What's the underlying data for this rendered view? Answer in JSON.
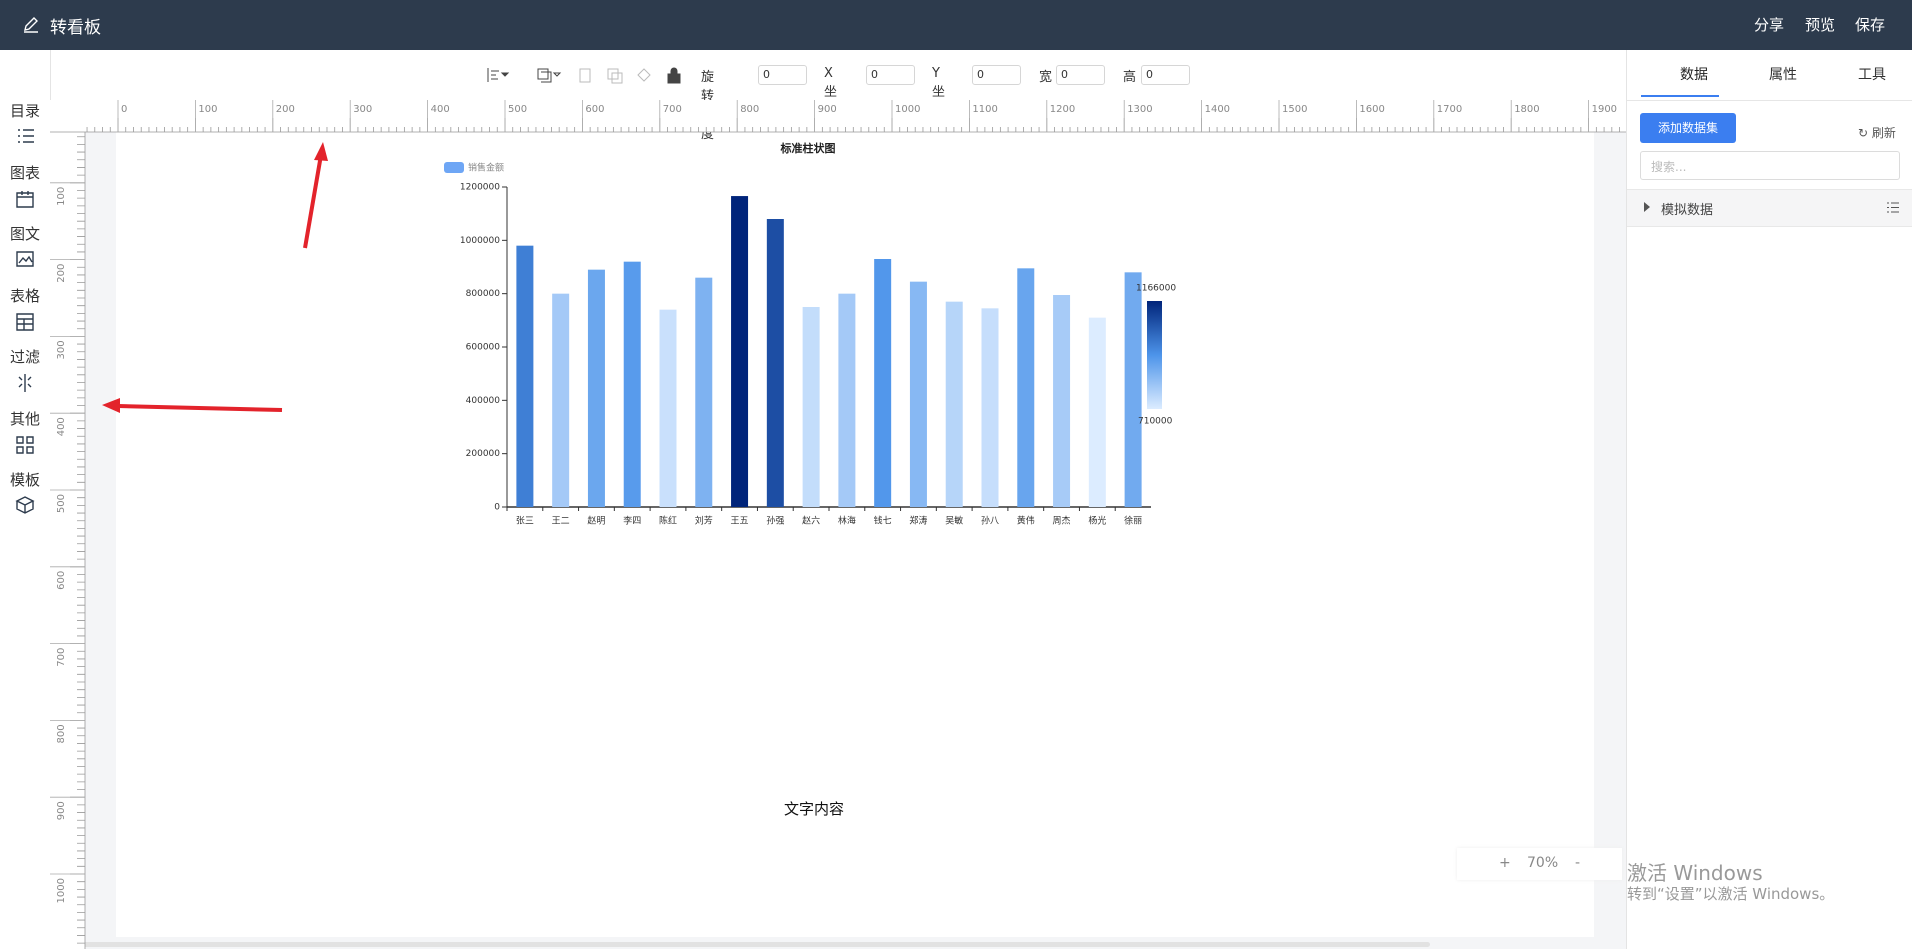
{
  "header": {
    "title": "转看板",
    "actions": [
      "分享",
      "预览",
      "保存"
    ]
  },
  "sidebar": [
    "目录",
    "图表",
    "图文",
    "表格",
    "过滤",
    "其他",
    "模板"
  ],
  "toolbar": [
    {
      "label": "旋转角度",
      "value": 0
    },
    {
      "label": "X坐标",
      "value": 0
    },
    {
      "label": "Y坐标",
      "value": 0
    },
    {
      "label": "宽",
      "value": 0
    },
    {
      "label": "高",
      "value": 0
    }
  ],
  "ruler": {
    "x_labels": [
      0,
      100,
      200,
      300,
      400,
      500,
      600,
      700,
      800,
      900,
      1000,
      1100,
      1200,
      1300,
      1400,
      1500,
      1600,
      1700,
      1800,
      1900
    ],
    "y_labels": [
      100,
      200,
      300,
      400,
      500,
      600,
      700,
      800,
      900,
      1000
    ]
  },
  "chart_data": {
    "type": "bar",
    "title": "标准柱状图",
    "legend": "销售金额",
    "color": "#6ea6f5",
    "categories": [
      "张三",
      "王二",
      "赵明",
      "李四",
      "陈红",
      "刘芳",
      "王五",
      "孙强",
      "赵六",
      "林海",
      "钱七",
      "郑涛",
      "吴敏",
      "孙八",
      "黄伟",
      "周杰",
      "杨光",
      "徐丽"
    ],
    "values": [
      980000,
      800000,
      890000,
      920000,
      740000,
      860000,
      1166000,
      1080000,
      750000,
      800000,
      930000,
      845000,
      770000,
      745000,
      895000,
      795000,
      710000,
      880000
    ],
    "ylim": [
      0,
      1200000
    ],
    "yticks": [
      0,
      200000,
      400000,
      600000,
      800000,
      1000000,
      1200000
    ],
    "visual_map": {
      "min": 710000,
      "max": 1166000,
      "colors": [
        "#dcecff",
        "#4d94ea",
        "#00247a"
      ]
    }
  },
  "canvas_text": "文字内容",
  "zoom": {
    "plus": "+",
    "level": "70%",
    "minus": "-"
  },
  "panel": {
    "tabs": [
      "数据",
      "属性",
      "工具"
    ],
    "add_button": "添加数据集",
    "refresh": "刷新",
    "search_placeholder": "搜索...",
    "tree": [
      "模拟数据"
    ]
  },
  "watermark": {
    "title": "激活 Windows",
    "subtitle": "转到“设置”以激活 Windows。"
  }
}
